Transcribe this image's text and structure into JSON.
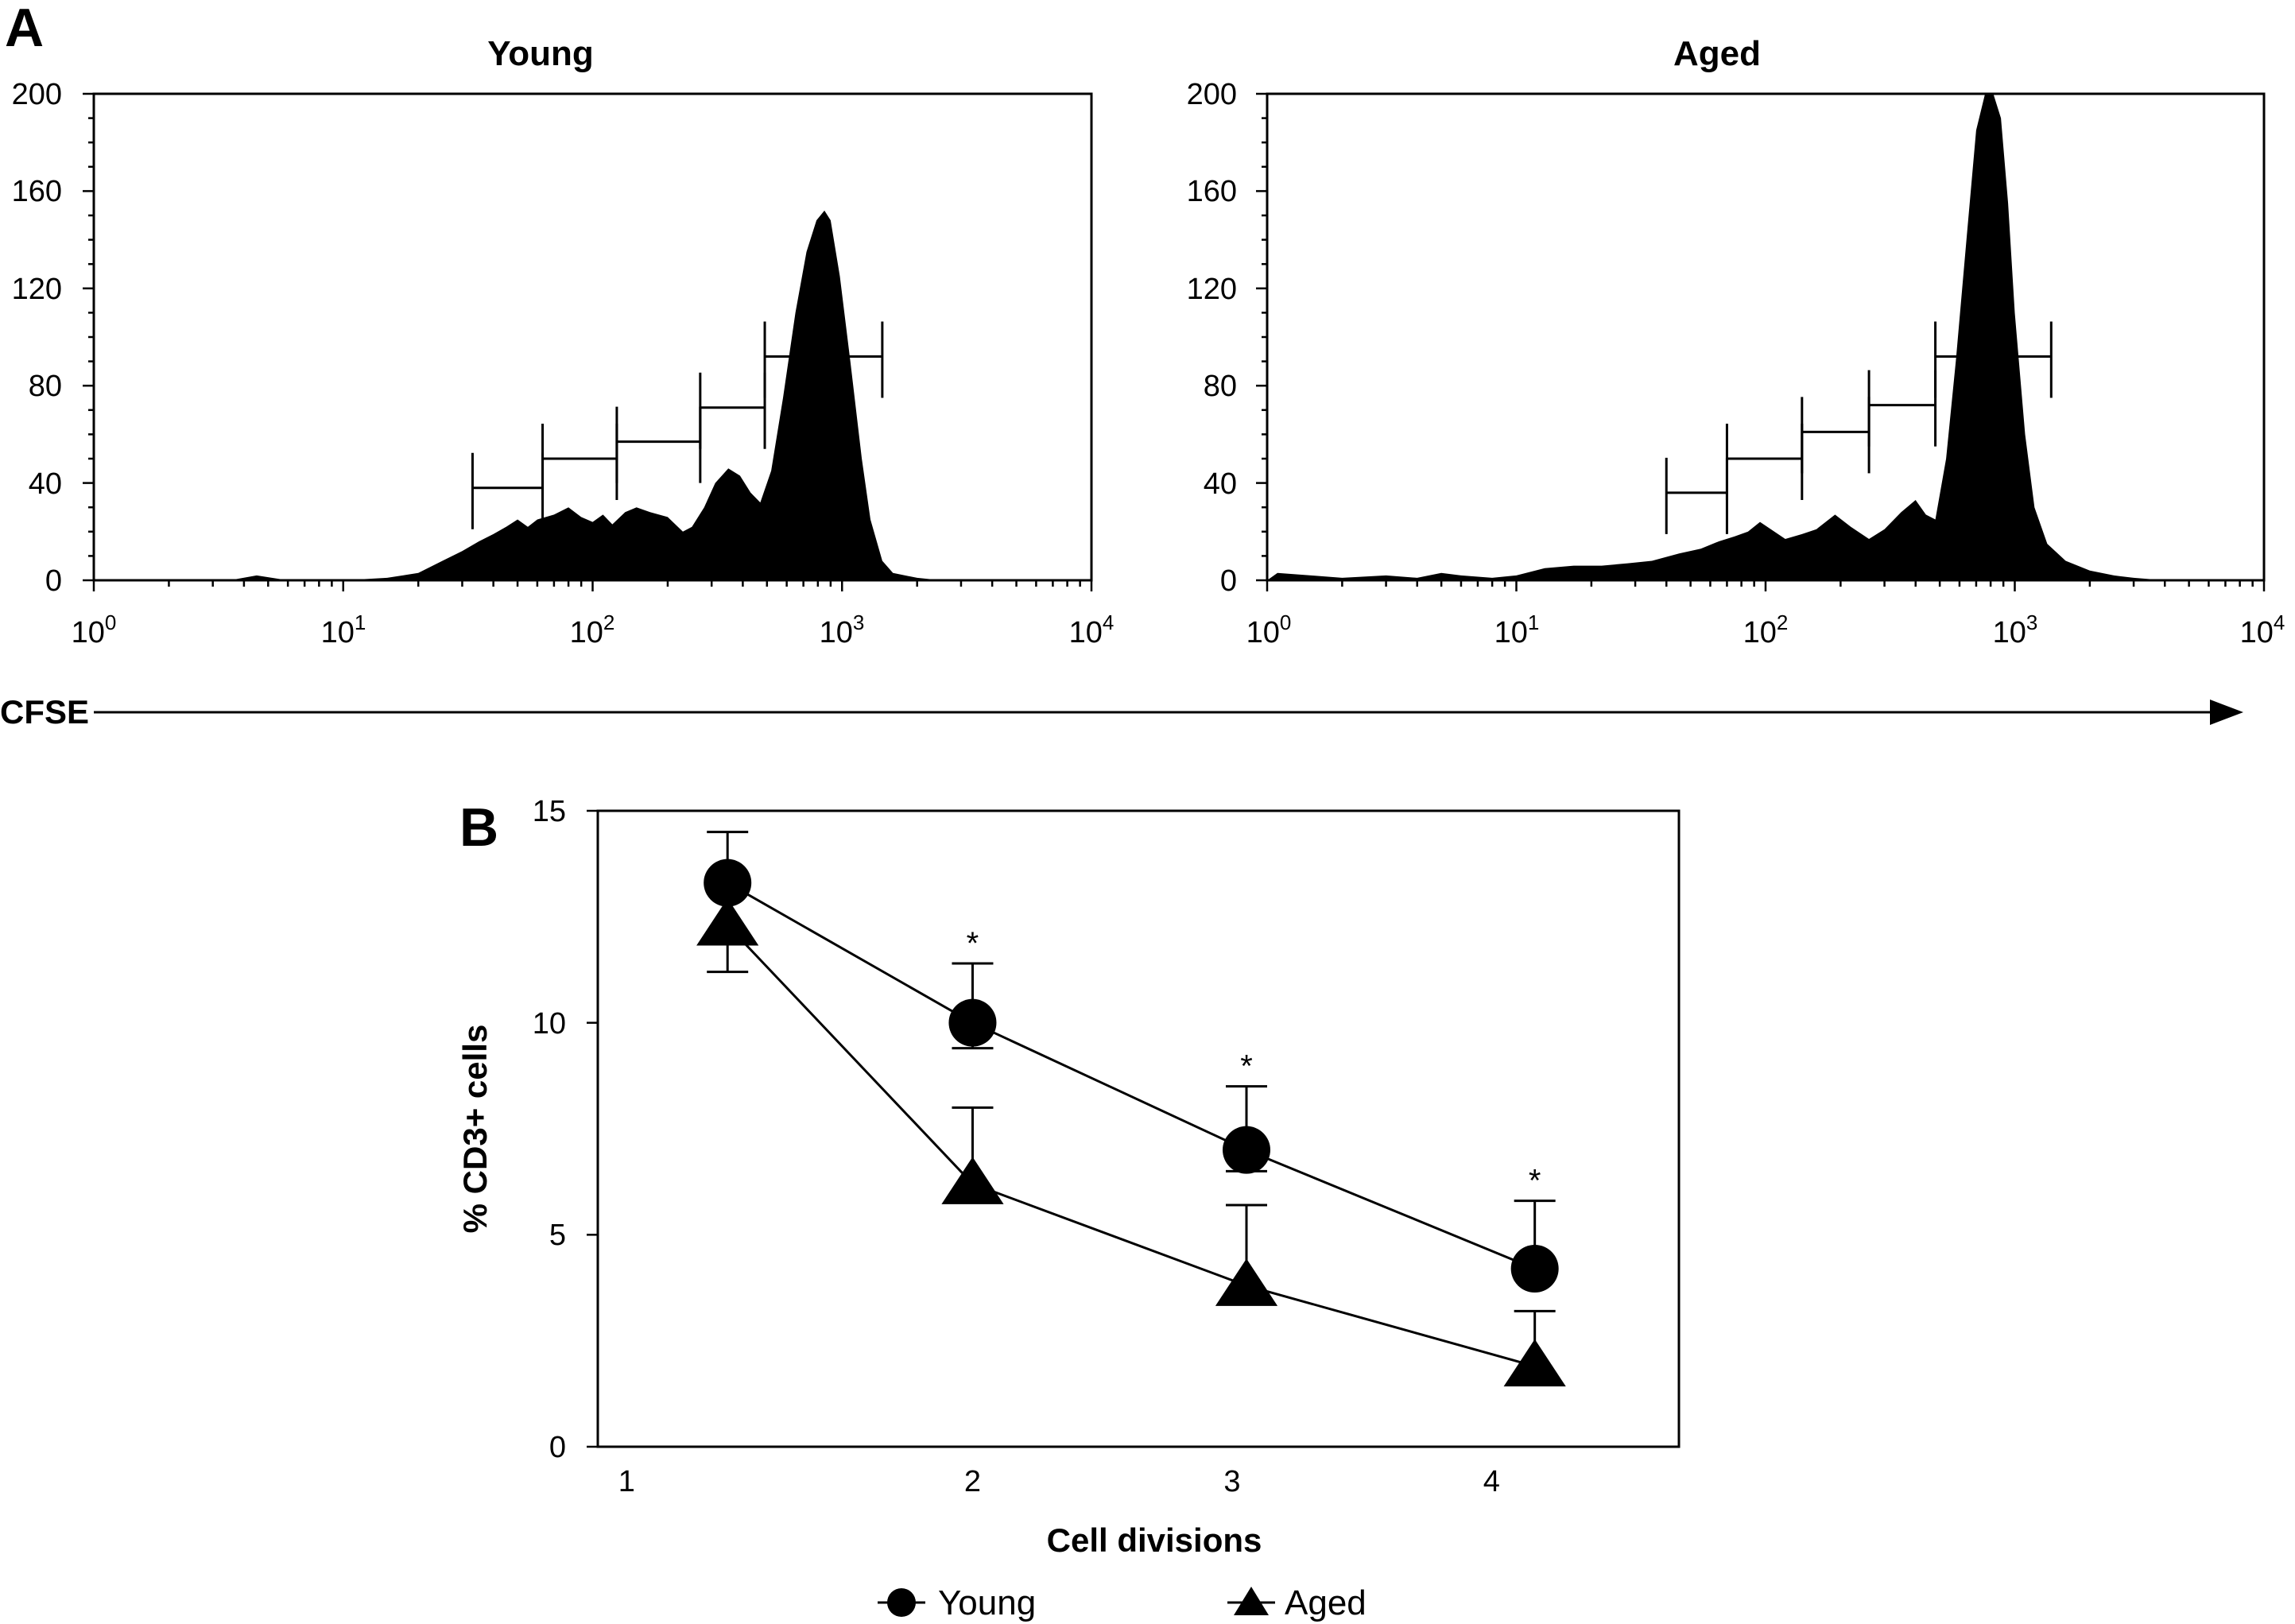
{
  "panel_a": {
    "label": "A",
    "x_axis_label": "CFSE",
    "histograms": [
      {
        "title": "Young",
        "yticks": [
          "0",
          "40",
          "80",
          "120",
          "160",
          "200"
        ],
        "xticks": [
          {
            "base": "10",
            "exp": "0"
          },
          {
            "base": "10",
            "exp": "1"
          },
          {
            "base": "10",
            "exp": "2"
          },
          {
            "base": "10",
            "exp": "3"
          },
          {
            "base": "10",
            "exp": "4"
          }
        ]
      },
      {
        "title": "Aged",
        "yticks": [
          "0",
          "40",
          "80",
          "120",
          "160",
          "200"
        ],
        "xticks": [
          {
            "base": "10",
            "exp": "0"
          },
          {
            "base": "10",
            "exp": "1"
          },
          {
            "base": "10",
            "exp": "2"
          },
          {
            "base": "10",
            "exp": "3"
          },
          {
            "base": "10",
            "exp": "4"
          }
        ]
      }
    ]
  },
  "panel_b": {
    "label": "B",
    "xlabel": "Cell divisions",
    "ylabel": "% CD3+ cells",
    "xticks": [
      "1",
      "2",
      "3",
      "4"
    ],
    "yticks": [
      "0",
      "5",
      "10",
      "15"
    ],
    "significance_marker": "*",
    "legend": [
      {
        "name": "Young",
        "marker": "circle"
      },
      {
        "name": "Aged",
        "marker": "triangle"
      }
    ]
  },
  "chart_data": [
    {
      "type": "area",
      "title": "Young",
      "x_scale": "log",
      "xlim": [
        1,
        10000
      ],
      "ylim": [
        0,
        200
      ],
      "xlabel": "CFSE",
      "histogram": [
        [
          1,
          0
        ],
        [
          3.5,
          0
        ],
        [
          4.5,
          2
        ],
        [
          6,
          0
        ],
        [
          10,
          0
        ],
        [
          15,
          1
        ],
        [
          20,
          3
        ],
        [
          25,
          8
        ],
        [
          30,
          12
        ],
        [
          35,
          16
        ],
        [
          40,
          19
        ],
        [
          45,
          22
        ],
        [
          50,
          25
        ],
        [
          55,
          22
        ],
        [
          60,
          25
        ],
        [
          70,
          27
        ],
        [
          80,
          30
        ],
        [
          90,
          26
        ],
        [
          100,
          24
        ],
        [
          110,
          27
        ],
        [
          120,
          23
        ],
        [
          135,
          28
        ],
        [
          150,
          30
        ],
        [
          170,
          28
        ],
        [
          200,
          26
        ],
        [
          230,
          20
        ],
        [
          250,
          22
        ],
        [
          280,
          30
        ],
        [
          310,
          40
        ],
        [
          350,
          46
        ],
        [
          390,
          43
        ],
        [
          430,
          36
        ],
        [
          470,
          32
        ],
        [
          520,
          45
        ],
        [
          580,
          75
        ],
        [
          650,
          110
        ],
        [
          720,
          135
        ],
        [
          790,
          148
        ],
        [
          850,
          152
        ],
        [
          900,
          148
        ],
        [
          980,
          125
        ],
        [
          1080,
          90
        ],
        [
          1200,
          50
        ],
        [
          1300,
          25
        ],
        [
          1450,
          8
        ],
        [
          1600,
          3
        ],
        [
          2000,
          1
        ],
        [
          2500,
          0
        ],
        [
          10000,
          0
        ]
      ],
      "gates": [
        {
          "x1": 33,
          "x2": 63,
          "y": 38
        },
        {
          "x1": 63,
          "x2": 125,
          "y": 50
        },
        {
          "x1": 125,
          "x2": 270,
          "y": 57
        },
        {
          "x1": 270,
          "x2": 490,
          "y": 71
        },
        {
          "x1": 490,
          "x2": 1450,
          "y": 92
        }
      ]
    },
    {
      "type": "area",
      "title": "Aged",
      "x_scale": "log",
      "xlim": [
        1,
        10000
      ],
      "ylim": [
        0,
        200
      ],
      "xlabel": "CFSE",
      "histogram": [
        [
          1,
          0
        ],
        [
          1.1,
          3
        ],
        [
          1.5,
          2
        ],
        [
          2,
          1
        ],
        [
          3,
          2
        ],
        [
          4,
          1
        ],
        [
          5,
          3
        ],
        [
          6,
          2
        ],
        [
          8,
          1
        ],
        [
          10,
          2
        ],
        [
          13,
          5
        ],
        [
          17,
          6
        ],
        [
          22,
          6
        ],
        [
          28,
          7
        ],
        [
          35,
          8
        ],
        [
          45,
          11
        ],
        [
          55,
          13
        ],
        [
          65,
          16
        ],
        [
          75,
          18
        ],
        [
          85,
          20
        ],
        [
          95,
          24
        ],
        [
          105,
          21
        ],
        [
          120,
          17
        ],
        [
          140,
          19
        ],
        [
          160,
          21
        ],
        [
          190,
          27
        ],
        [
          220,
          22
        ],
        [
          260,
          17
        ],
        [
          300,
          21
        ],
        [
          350,
          28
        ],
        [
          400,
          33
        ],
        [
          440,
          27
        ],
        [
          480,
          25
        ],
        [
          530,
          50
        ],
        [
          580,
          90
        ],
        [
          640,
          140
        ],
        [
          700,
          185
        ],
        [
          760,
          200
        ],
        [
          820,
          200
        ],
        [
          880,
          190
        ],
        [
          940,
          155
        ],
        [
          1000,
          110
        ],
        [
          1100,
          60
        ],
        [
          1200,
          30
        ],
        [
          1350,
          15
        ],
        [
          1600,
          8
        ],
        [
          2000,
          4
        ],
        [
          2500,
          2
        ],
        [
          3000,
          1
        ],
        [
          4000,
          0
        ],
        [
          10000,
          0
        ]
      ],
      "gates": [
        {
          "x1": 40,
          "x2": 70,
          "y": 36
        },
        {
          "x1": 70,
          "x2": 140,
          "y": 50
        },
        {
          "x1": 140,
          "x2": 260,
          "y": 61
        },
        {
          "x1": 260,
          "x2": 480,
          "y": 72
        },
        {
          "x1": 480,
          "x2": 1400,
          "y": 92
        }
      ]
    },
    {
      "type": "line",
      "xlabel": "Cell divisions",
      "ylabel": "% CD3+ cells",
      "xlim": [
        0.75,
        4.5
      ],
      "ylim": [
        0,
        15
      ],
      "x": [
        1,
        2,
        3,
        4
      ],
      "series": [
        {
          "name": "Young",
          "marker": "circle",
          "x": [
            1.2,
            2.05,
            3.0,
            4.0
          ],
          "values": [
            13.3,
            10.0,
            7.0,
            4.2
          ],
          "error_upper": [
            14.5,
            11.4,
            8.5,
            5.8
          ],
          "error_lower": [
            null,
            9.4,
            6.5,
            null
          ],
          "significant": [
            false,
            true,
            true,
            true
          ]
        },
        {
          "name": "Aged",
          "marker": "triangle",
          "x": [
            1.2,
            2.05,
            3.0,
            4.0
          ],
          "values": [
            12.3,
            6.2,
            3.8,
            1.9
          ],
          "error_upper": [
            null,
            8.0,
            5.7,
            3.2
          ],
          "error_lower": [
            11.2,
            null,
            null,
            null
          ]
        }
      ]
    }
  ]
}
